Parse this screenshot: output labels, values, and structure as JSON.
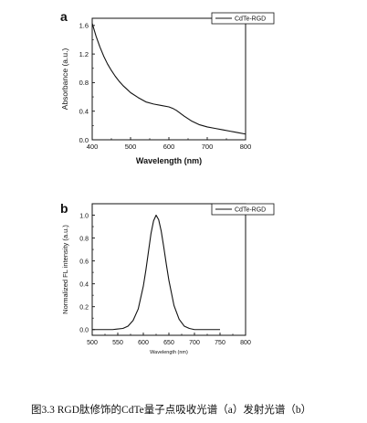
{
  "figure": {
    "caption": "图3.3 RGD肽修饰的CdTe量子点吸收光谱（a）发射光谱（b）"
  },
  "chart_data": [
    {
      "panel": "a",
      "type": "line",
      "xlabel": "Wavelength (nm)",
      "ylabel": "Absorbance (a.u.)",
      "xlim": [
        400,
        800
      ],
      "ylim": [
        0,
        1.7
      ],
      "xticks": [
        400,
        500,
        600,
        700,
        800
      ],
      "yticks": [
        0.0,
        0.4,
        0.8,
        1.2,
        1.6
      ],
      "ytick_labels": [
        "0.0",
        "0.4",
        "0.8",
        "1.2",
        "1.6"
      ],
      "legend_position": "top-right",
      "series": [
        {
          "name": "CdTe-RGD",
          "color": "#111111",
          "x": [
            400,
            410,
            420,
            430,
            440,
            450,
            460,
            470,
            480,
            490,
            500,
            520,
            540,
            560,
            580,
            600,
            610,
            620,
            630,
            640,
            660,
            680,
            700,
            720,
            740,
            760,
            780,
            800
          ],
          "y": [
            1.63,
            1.45,
            1.3,
            1.17,
            1.06,
            0.97,
            0.89,
            0.82,
            0.76,
            0.71,
            0.66,
            0.59,
            0.53,
            0.5,
            0.48,
            0.46,
            0.44,
            0.41,
            0.37,
            0.33,
            0.26,
            0.21,
            0.18,
            0.16,
            0.14,
            0.12,
            0.1,
            0.08
          ]
        }
      ]
    },
    {
      "panel": "b",
      "type": "line",
      "xlabel": "Wavelength (nm)",
      "ylabel": "Normalized FL intensity (a.u.)",
      "xlim": [
        500,
        800
      ],
      "ylim": [
        -0.05,
        1.1
      ],
      "xticks": [
        500,
        550,
        600,
        650,
        700,
        750,
        800
      ],
      "yticks": [
        0.0,
        0.2,
        0.4,
        0.6,
        0.8,
        1.0
      ],
      "ytick_labels": [
        "0.0",
        "0.2",
        "0.4",
        "0.6",
        "0.8",
        "1.0"
      ],
      "legend_position": "top-right",
      "series": [
        {
          "name": "CdTe-RGD",
          "color": "#111111",
          "x": [
            500,
            520,
            540,
            560,
            570,
            580,
            590,
            600,
            605,
            610,
            615,
            620,
            625,
            630,
            635,
            640,
            645,
            650,
            660,
            670,
            680,
            690,
            700,
            720,
            750
          ],
          "y": [
            0.0,
            0.0,
            0.0,
            0.01,
            0.03,
            0.08,
            0.18,
            0.38,
            0.52,
            0.68,
            0.84,
            0.95,
            1.0,
            0.96,
            0.86,
            0.72,
            0.57,
            0.43,
            0.21,
            0.09,
            0.03,
            0.01,
            0.0,
            0.0,
            0.0
          ]
        }
      ]
    }
  ]
}
